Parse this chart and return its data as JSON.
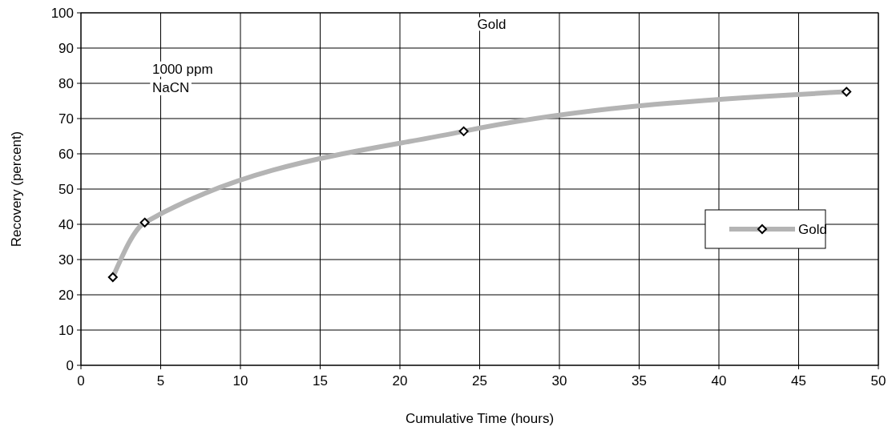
{
  "chart_data": {
    "type": "line",
    "title": "Gold",
    "xlabel": "Cumulative Time (hours)",
    "ylabel": "Recovery (percent)",
    "x": [
      2,
      4,
      24,
      48
    ],
    "series": [
      {
        "name": "Gold",
        "color": "#b4b4b4",
        "values": [
          25,
          40.5,
          66.4,
          77.6
        ]
      }
    ],
    "xlim": [
      0,
      50
    ],
    "xticks": [
      0,
      5,
      10,
      15,
      20,
      25,
      30,
      35,
      40,
      45,
      50
    ],
    "ylim": [
      0,
      100
    ],
    "yticks": [
      0,
      10,
      20,
      30,
      40,
      50,
      60,
      70,
      80,
      90,
      100
    ],
    "grid": true,
    "legend": "right",
    "marker": "diamond",
    "line_style": "solid",
    "annotations": [
      "1000 ppm\nNaCN"
    ]
  }
}
